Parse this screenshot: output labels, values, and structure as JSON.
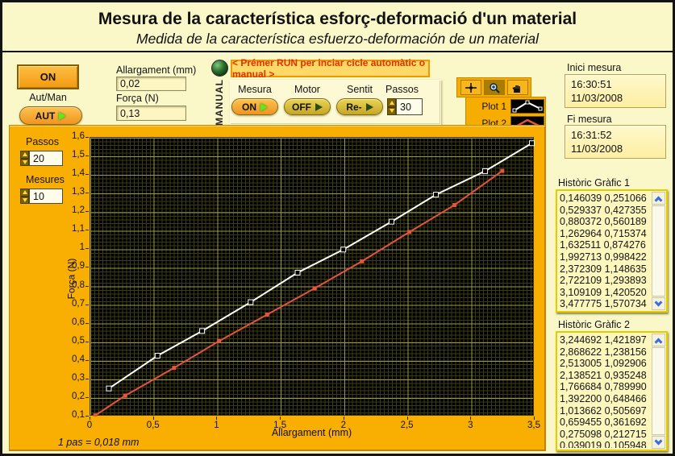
{
  "window": {
    "title": "Mesura de la característica esforç-deformació d'un material",
    "subtitle": "Medida de la característica esfuerzo-deformación de un material"
  },
  "colors": {
    "panel_gold": "#f9ae02",
    "background": "#faf7c8",
    "plot_background": "#000000",
    "plot1": "#ffffff",
    "plot2": "#e5543c",
    "instruction_text": "#e13200"
  },
  "controls": {
    "power_button": "ON",
    "aut_man_label": "Aut/Man",
    "aut_toggle": "AUT",
    "allargament_label": "Allargament (mm)",
    "allargament_value": "0,02",
    "forca_label": "Força (N)",
    "forca_value": "0,13",
    "manual_label": "MANUAL",
    "run_instruction": "< Prémer RUN per inciar cicle automàtic o manual >",
    "mesura_label": "Mesura",
    "mesura_value": "ON",
    "motor_label": "Motor",
    "motor_value": "OFF",
    "sentit_label": "Sentit",
    "sentit_value": "Re-",
    "passos_label": "Passos",
    "passos_value": "30"
  },
  "left_panel": {
    "passos_label": "Passos",
    "passos_value": "20",
    "mesures_label": "Mesures",
    "mesures_value": "10",
    "pas_note": "1 pas = 0,018 mm"
  },
  "palette_icons": [
    "crosshair-icon",
    "zoom-icon",
    "hand-icon"
  ],
  "legend": {
    "plot1": "Plot 1",
    "plot2": "Plot 2"
  },
  "right_panel": {
    "inici_label": "Inici mesura",
    "inici_time": "16:30:51",
    "inici_date": "11/03/2008",
    "fi_label": "Fi mesura",
    "fi_time": "16:31:52",
    "fi_date": "11/03/2008",
    "historic1_label": "Històric Gràfic 1",
    "historic1_rows": [
      "0,146039 0,251066",
      "0,529337 0,427355",
      "0,880372 0,560189",
      "1,262964 0,715374",
      "1,632511 0,874276",
      "1,992713 0,998422",
      "2,372309 1,148635",
      "2,722109 1,293893",
      "3,109109 1,420520",
      "3,477775 1,570734"
    ],
    "historic2_label": "Històric Gràfic 2",
    "historic2_rows": [
      "3,244692 1,421897",
      "2,868622 1,238156",
      "2,513005 1,092906",
      "2,138521 0,935248",
      "1,766684 0,789990",
      "1,392200 0,648466",
      "1,013662 0,505697",
      "0,659455 0,361692",
      "0,275098 0,212715",
      "0,039019 0,105948"
    ]
  },
  "chart_data": {
    "type": "line",
    "title": "",
    "xlabel": "Allargament (mm)",
    "ylabel": "Força (N)",
    "xlim": [
      0,
      3.5
    ],
    "ylim": [
      0.1,
      1.6
    ],
    "grid": true,
    "x_tick_values": [
      0,
      0.5,
      1,
      1.5,
      2,
      2.5,
      3,
      3.5
    ],
    "x_tick_labels": [
      "0",
      "0,5",
      "1",
      "1,5",
      "2",
      "2,5",
      "3",
      "3,5"
    ],
    "y_tick_values": [
      1.6,
      1.5,
      1.4,
      1.3,
      1.2,
      1.1,
      1.0,
      0.9,
      0.8,
      0.7,
      0.6,
      0.5,
      0.4,
      0.3,
      0.2,
      0.1
    ],
    "y_tick_labels": [
      "1,6",
      "1,5",
      "1,4",
      "1,3",
      "1,2",
      "1,1",
      "1",
      "0,9",
      "0,8",
      "0,7",
      "0,6",
      "0,5",
      "0,4",
      "0,3",
      "0,2",
      "0,1"
    ],
    "legend_position": "top-right",
    "series": [
      {
        "name": "Plot 1",
        "color": "#ffffff",
        "marker": "hollow-square",
        "x": [
          0.146039,
          0.529337,
          0.880372,
          1.262964,
          1.632511,
          1.992713,
          2.372309,
          2.722109,
          3.109109,
          3.477775
        ],
        "y": [
          0.251066,
          0.427355,
          0.560189,
          0.715374,
          0.874276,
          0.998422,
          1.148635,
          1.293893,
          1.42052,
          1.570734
        ]
      },
      {
        "name": "Plot 2",
        "color": "#e5543c",
        "marker": "filled-square",
        "x": [
          0.039019,
          0.275098,
          0.659455,
          1.013662,
          1.3922,
          1.766684,
          2.138521,
          2.513005,
          2.868622,
          3.244692
        ],
        "y": [
          0.105948,
          0.212715,
          0.361692,
          0.505697,
          0.648466,
          0.78999,
          0.935248,
          1.092906,
          1.238156,
          1.421897
        ]
      }
    ]
  }
}
